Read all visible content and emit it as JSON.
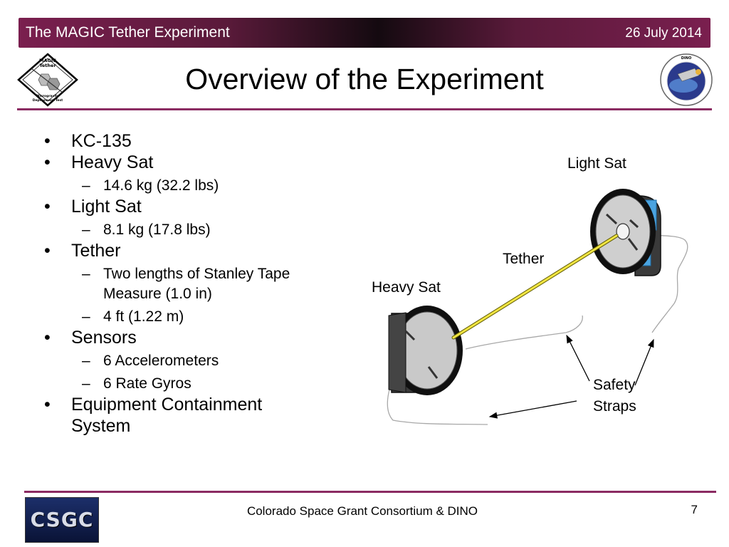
{
  "header": {
    "title": "The MAGIC Tether Experiment",
    "date": "26 July 2014"
  },
  "slide": {
    "title": "Overview of the Experiment"
  },
  "logos": {
    "left": {
      "line1": "MAGIC",
      "line2": "Tether",
      "line3": "Microgravity",
      "line4": "Deployment Test"
    },
    "right": {
      "top": "DINO"
    },
    "footer": "CSGC"
  },
  "bullets": [
    {
      "text": "KC-135",
      "sub": []
    },
    {
      "text": "Heavy Sat",
      "sub": [
        "14.6 kg (32.2 lbs)"
      ]
    },
    {
      "text": "Light Sat",
      "sub": [
        "8.1 kg (17.8 lbs)"
      ]
    },
    {
      "text": "Tether",
      "sub": [
        "Two lengths of Stanley Tape Measure (1.0 in)",
        "4 ft (1.22 m)"
      ]
    },
    {
      "text": "Sensors",
      "sub": [
        "6 Accelerometers",
        "6 Rate Gyros"
      ]
    },
    {
      "text": "Equipment Containment System",
      "sub": []
    }
  ],
  "diagram": {
    "light_sat": "Light Sat",
    "heavy_sat": "Heavy Sat",
    "tether": "Tether",
    "safety_line1": "Safety",
    "safety_line2": "Straps"
  },
  "footer": {
    "text": "Colorado Space Grant Consortium  & DINO",
    "page": "7"
  },
  "colors": {
    "accent": "#8b2b62",
    "header": "#7a1f4f",
    "tether": "#f0e442"
  }
}
